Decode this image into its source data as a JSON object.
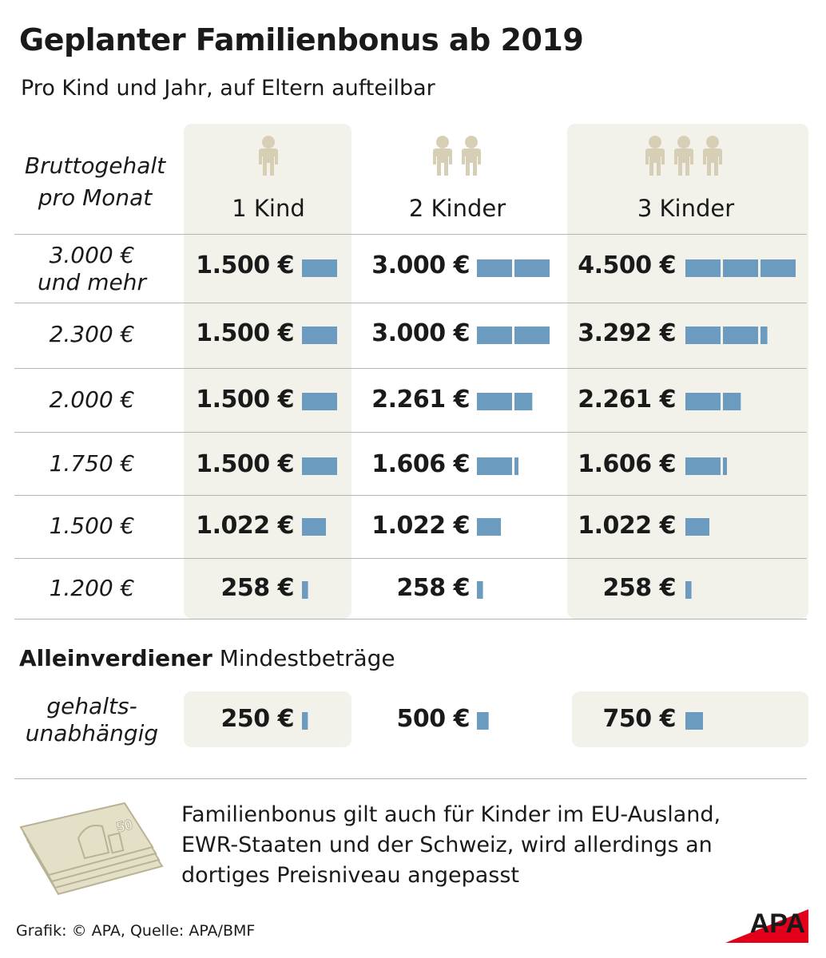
{
  "title": "Geplanter Familienbonus ab 2019",
  "subtitle": "Pro Kind und Jahr, auf Eltern aufteilbar",
  "row_header": [
    "Bruttogehalt",
    "pro Monat"
  ],
  "columns": [
    "1 Kind",
    "2 Kinder",
    "3 Kinder"
  ],
  "kids_per_column": [
    1,
    2,
    3
  ],
  "rows": [
    {
      "income": [
        "3.000 €",
        "und mehr"
      ],
      "values": [
        1500,
        3000,
        4500
      ],
      "labels": [
        "1.500 €",
        "3.000 €",
        "4.500 €"
      ]
    },
    {
      "income": [
        "2.300 €"
      ],
      "values": [
        1500,
        3000,
        3292
      ],
      "labels": [
        "1.500 €",
        "3.000 €",
        "3.292 €"
      ]
    },
    {
      "income": [
        "2.000 €"
      ],
      "values": [
        1500,
        2261,
        2261
      ],
      "labels": [
        "1.500 €",
        "2.261 €",
        "2.261 €"
      ]
    },
    {
      "income": [
        "1.750 €"
      ],
      "values": [
        1500,
        1606,
        1606
      ],
      "labels": [
        "1.500 €",
        "1.606 €",
        "1.606 €"
      ]
    },
    {
      "income": [
        "1.500 €"
      ],
      "values": [
        1022,
        1022,
        1022
      ],
      "labels": [
        "1.022 €",
        "1.022 €",
        "1.022 €"
      ]
    },
    {
      "income": [
        "1.200 €"
      ],
      "values": [
        258,
        258,
        258
      ],
      "labels": [
        "258 €",
        "258 €",
        "258 €"
      ]
    }
  ],
  "single_earner": {
    "title_bold": "Alleinverdiener",
    "title_rest": " Mindestbeträge",
    "label": [
      "gehalts-",
      "unabhängig"
    ],
    "values": [
      250,
      500,
      750
    ],
    "labels": [
      "250 €",
      "500 €",
      "750 €"
    ]
  },
  "note": [
    "Familienbonus gilt auch für Kinder im EU-Ausland,",
    "EWR-Staaten und der Schweiz, wird allerdings an",
    "dortiges Preisniveau angepasst"
  ],
  "banknote_label": "50",
  "source": "Grafik: © APA, Quelle: APA/BMF",
  "logo_text": "APA",
  "colors": {
    "bar": "#6b9bbf",
    "column_bg": "#f2f1ea",
    "figure": "#d7cfb5",
    "logo_red": "#e3001b"
  },
  "chart_data": {
    "type": "bar",
    "title": "Geplanter Familienbonus ab 2019",
    "subtitle": "Pro Kind und Jahr, auf Eltern aufteilbar",
    "categories": [
      "3.000 € und mehr",
      "2.300 €",
      "2.000 €",
      "1.750 €",
      "1.500 €",
      "1.200 €",
      "gehaltsunabhängig (Alleinverdiener)"
    ],
    "series": [
      {
        "name": "1 Kind",
        "values": [
          1500,
          1500,
          1500,
          1500,
          1022,
          258,
          250
        ]
      },
      {
        "name": "2 Kinder",
        "values": [
          3000,
          3000,
          2261,
          1606,
          1022,
          258,
          500
        ]
      },
      {
        "name": "3 Kinder",
        "values": [
          4500,
          3292,
          2261,
          1606,
          1022,
          258,
          750
        ]
      }
    ],
    "unit": "€"
  }
}
